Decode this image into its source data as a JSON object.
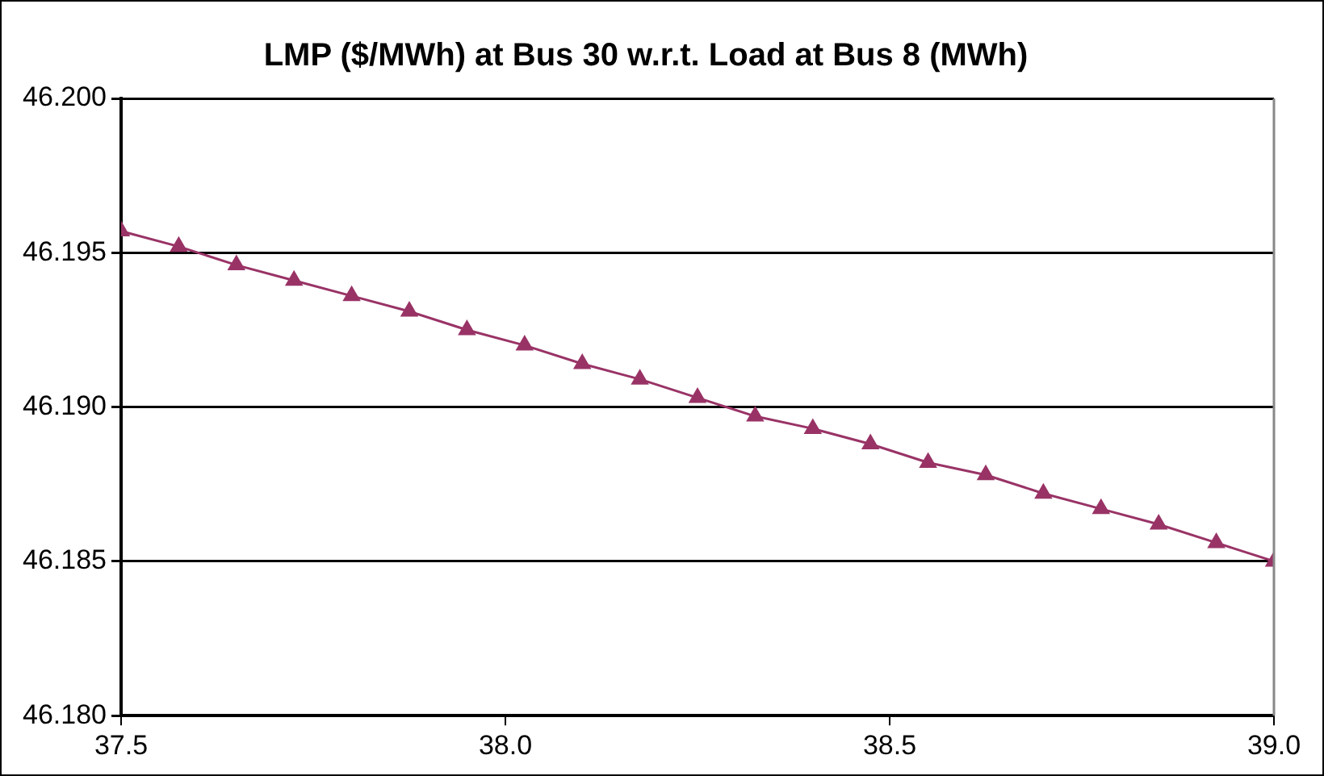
{
  "chart_data": {
    "type": "line",
    "title": "LMP ($/MWh) at Bus 30 w.r.t. Load at Bus 8 (MWh)",
    "x": [
      37.5,
      37.575,
      37.65,
      37.725,
      37.8,
      37.875,
      37.95,
      38.025,
      38.1,
      38.175,
      38.25,
      38.325,
      38.4,
      38.475,
      38.55,
      38.625,
      38.7,
      38.775,
      38.85,
      38.925,
      39.0
    ],
    "series": [
      {
        "color": "#993366",
        "values": [
          46.1957,
          46.1952,
          46.1946,
          46.1941,
          46.1936,
          46.1931,
          46.1925,
          46.192,
          46.1914,
          46.1909,
          46.1903,
          46.1897,
          46.1893,
          46.1888,
          46.1882,
          46.1878,
          46.1872,
          46.1867,
          46.1862,
          46.1856,
          46.185
        ]
      }
    ],
    "xlim": [
      37.5,
      39.0
    ],
    "xticks": [
      {
        "value": 37.5,
        "label": "37.5"
      },
      {
        "value": 38,
        "label": "38.0"
      },
      {
        "value": 38.5,
        "label": "38.5"
      },
      {
        "value": 39,
        "label": "39.0"
      }
    ],
    "ylim": [
      46.18,
      46.2
    ],
    "yticks": [
      {
        "value": 46.18,
        "label": "46.180"
      },
      {
        "value": 46.185,
        "label": "46.185"
      },
      {
        "value": 46.19,
        "label": "46.190"
      },
      {
        "value": 46.195,
        "label": "46.195"
      },
      {
        "value": 46.2,
        "label": "46.200"
      }
    ],
    "grid": "y",
    "legend": false,
    "marker": "triangle",
    "line_style": "solid"
  }
}
